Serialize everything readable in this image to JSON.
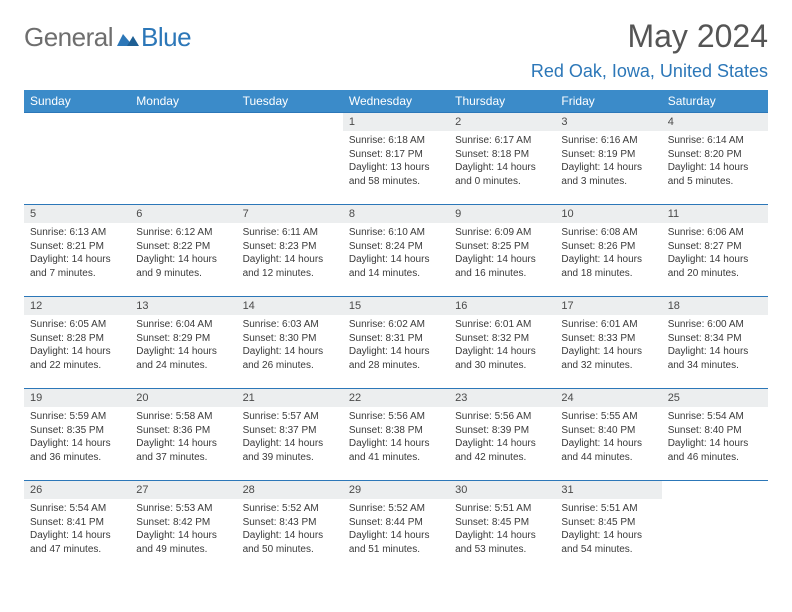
{
  "logo": {
    "part1": "General",
    "part2": "Blue"
  },
  "title": "May 2024",
  "location": "Red Oak, Iowa, United States",
  "colors": {
    "header_bg": "#3b8bc9",
    "header_text": "#ffffff",
    "accent": "#2c77b8",
    "daynum_bg": "#eceeef",
    "body_text": "#3a3a3a",
    "logo_gray": "#6e6e6e"
  },
  "daysOfWeek": [
    "Sunday",
    "Monday",
    "Tuesday",
    "Wednesday",
    "Thursday",
    "Friday",
    "Saturday"
  ],
  "weeks": [
    [
      {
        "day": "",
        "sunrise": "",
        "sunset": "",
        "daylight": ""
      },
      {
        "day": "",
        "sunrise": "",
        "sunset": "",
        "daylight": ""
      },
      {
        "day": "",
        "sunrise": "",
        "sunset": "",
        "daylight": ""
      },
      {
        "day": "1",
        "sunrise": "Sunrise: 6:18 AM",
        "sunset": "Sunset: 8:17 PM",
        "daylight": "Daylight: 13 hours and 58 minutes."
      },
      {
        "day": "2",
        "sunrise": "Sunrise: 6:17 AM",
        "sunset": "Sunset: 8:18 PM",
        "daylight": "Daylight: 14 hours and 0 minutes."
      },
      {
        "day": "3",
        "sunrise": "Sunrise: 6:16 AM",
        "sunset": "Sunset: 8:19 PM",
        "daylight": "Daylight: 14 hours and 3 minutes."
      },
      {
        "day": "4",
        "sunrise": "Sunrise: 6:14 AM",
        "sunset": "Sunset: 8:20 PM",
        "daylight": "Daylight: 14 hours and 5 minutes."
      }
    ],
    [
      {
        "day": "5",
        "sunrise": "Sunrise: 6:13 AM",
        "sunset": "Sunset: 8:21 PM",
        "daylight": "Daylight: 14 hours and 7 minutes."
      },
      {
        "day": "6",
        "sunrise": "Sunrise: 6:12 AM",
        "sunset": "Sunset: 8:22 PM",
        "daylight": "Daylight: 14 hours and 9 minutes."
      },
      {
        "day": "7",
        "sunrise": "Sunrise: 6:11 AM",
        "sunset": "Sunset: 8:23 PM",
        "daylight": "Daylight: 14 hours and 12 minutes."
      },
      {
        "day": "8",
        "sunrise": "Sunrise: 6:10 AM",
        "sunset": "Sunset: 8:24 PM",
        "daylight": "Daylight: 14 hours and 14 minutes."
      },
      {
        "day": "9",
        "sunrise": "Sunrise: 6:09 AM",
        "sunset": "Sunset: 8:25 PM",
        "daylight": "Daylight: 14 hours and 16 minutes."
      },
      {
        "day": "10",
        "sunrise": "Sunrise: 6:08 AM",
        "sunset": "Sunset: 8:26 PM",
        "daylight": "Daylight: 14 hours and 18 minutes."
      },
      {
        "day": "11",
        "sunrise": "Sunrise: 6:06 AM",
        "sunset": "Sunset: 8:27 PM",
        "daylight": "Daylight: 14 hours and 20 minutes."
      }
    ],
    [
      {
        "day": "12",
        "sunrise": "Sunrise: 6:05 AM",
        "sunset": "Sunset: 8:28 PM",
        "daylight": "Daylight: 14 hours and 22 minutes."
      },
      {
        "day": "13",
        "sunrise": "Sunrise: 6:04 AM",
        "sunset": "Sunset: 8:29 PM",
        "daylight": "Daylight: 14 hours and 24 minutes."
      },
      {
        "day": "14",
        "sunrise": "Sunrise: 6:03 AM",
        "sunset": "Sunset: 8:30 PM",
        "daylight": "Daylight: 14 hours and 26 minutes."
      },
      {
        "day": "15",
        "sunrise": "Sunrise: 6:02 AM",
        "sunset": "Sunset: 8:31 PM",
        "daylight": "Daylight: 14 hours and 28 minutes."
      },
      {
        "day": "16",
        "sunrise": "Sunrise: 6:01 AM",
        "sunset": "Sunset: 8:32 PM",
        "daylight": "Daylight: 14 hours and 30 minutes."
      },
      {
        "day": "17",
        "sunrise": "Sunrise: 6:01 AM",
        "sunset": "Sunset: 8:33 PM",
        "daylight": "Daylight: 14 hours and 32 minutes."
      },
      {
        "day": "18",
        "sunrise": "Sunrise: 6:00 AM",
        "sunset": "Sunset: 8:34 PM",
        "daylight": "Daylight: 14 hours and 34 minutes."
      }
    ],
    [
      {
        "day": "19",
        "sunrise": "Sunrise: 5:59 AM",
        "sunset": "Sunset: 8:35 PM",
        "daylight": "Daylight: 14 hours and 36 minutes."
      },
      {
        "day": "20",
        "sunrise": "Sunrise: 5:58 AM",
        "sunset": "Sunset: 8:36 PM",
        "daylight": "Daylight: 14 hours and 37 minutes."
      },
      {
        "day": "21",
        "sunrise": "Sunrise: 5:57 AM",
        "sunset": "Sunset: 8:37 PM",
        "daylight": "Daylight: 14 hours and 39 minutes."
      },
      {
        "day": "22",
        "sunrise": "Sunrise: 5:56 AM",
        "sunset": "Sunset: 8:38 PM",
        "daylight": "Daylight: 14 hours and 41 minutes."
      },
      {
        "day": "23",
        "sunrise": "Sunrise: 5:56 AM",
        "sunset": "Sunset: 8:39 PM",
        "daylight": "Daylight: 14 hours and 42 minutes."
      },
      {
        "day": "24",
        "sunrise": "Sunrise: 5:55 AM",
        "sunset": "Sunset: 8:40 PM",
        "daylight": "Daylight: 14 hours and 44 minutes."
      },
      {
        "day": "25",
        "sunrise": "Sunrise: 5:54 AM",
        "sunset": "Sunset: 8:40 PM",
        "daylight": "Daylight: 14 hours and 46 minutes."
      }
    ],
    [
      {
        "day": "26",
        "sunrise": "Sunrise: 5:54 AM",
        "sunset": "Sunset: 8:41 PM",
        "daylight": "Daylight: 14 hours and 47 minutes."
      },
      {
        "day": "27",
        "sunrise": "Sunrise: 5:53 AM",
        "sunset": "Sunset: 8:42 PM",
        "daylight": "Daylight: 14 hours and 49 minutes."
      },
      {
        "day": "28",
        "sunrise": "Sunrise: 5:52 AM",
        "sunset": "Sunset: 8:43 PM",
        "daylight": "Daylight: 14 hours and 50 minutes."
      },
      {
        "day": "29",
        "sunrise": "Sunrise: 5:52 AM",
        "sunset": "Sunset: 8:44 PM",
        "daylight": "Daylight: 14 hours and 51 minutes."
      },
      {
        "day": "30",
        "sunrise": "Sunrise: 5:51 AM",
        "sunset": "Sunset: 8:45 PM",
        "daylight": "Daylight: 14 hours and 53 minutes."
      },
      {
        "day": "31",
        "sunrise": "Sunrise: 5:51 AM",
        "sunset": "Sunset: 8:45 PM",
        "daylight": "Daylight: 14 hours and 54 minutes."
      },
      {
        "day": "",
        "sunrise": "",
        "sunset": "",
        "daylight": ""
      }
    ]
  ]
}
